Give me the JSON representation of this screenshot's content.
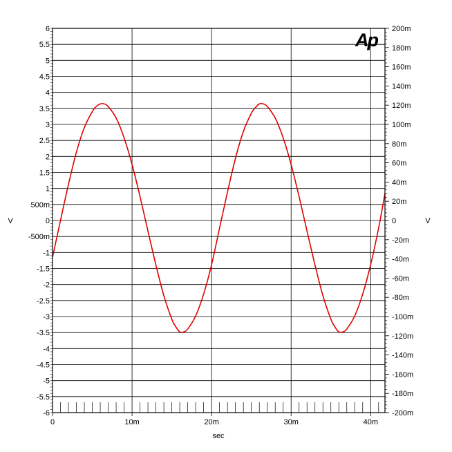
{
  "chart_data": {
    "type": "line",
    "title": "",
    "xlabel": "sec",
    "ylabel_left": "V",
    "ylabel_right": "V",
    "xlim": [
      0,
      0.0418
    ],
    "ylim_left": [
      -6,
      6
    ],
    "ylim_right": [
      -0.2,
      0.2
    ],
    "grid": true,
    "x_ticks": [
      {
        "value": 0,
        "label": "0"
      },
      {
        "value": 0.01,
        "label": "10m"
      },
      {
        "value": 0.02,
        "label": "20m"
      },
      {
        "value": 0.03,
        "label": "30m"
      },
      {
        "value": 0.04,
        "label": "40m"
      }
    ],
    "y_ticks_left": [
      {
        "value": 6,
        "label": "6"
      },
      {
        "value": 5.5,
        "label": "5.5"
      },
      {
        "value": 5,
        "label": "5"
      },
      {
        "value": 4.5,
        "label": "4.5"
      },
      {
        "value": 4,
        "label": "4"
      },
      {
        "value": 3.5,
        "label": "3.5"
      },
      {
        "value": 3,
        "label": "3"
      },
      {
        "value": 2.5,
        "label": "2.5"
      },
      {
        "value": 2,
        "label": "2"
      },
      {
        "value": 1.5,
        "label": "1.5"
      },
      {
        "value": 1,
        "label": "1"
      },
      {
        "value": 0.5,
        "label": "500m"
      },
      {
        "value": 0,
        "label": "0"
      },
      {
        "value": -0.5,
        "label": "-500m"
      },
      {
        "value": -1,
        "label": "-1"
      },
      {
        "value": -1.5,
        "label": "-1.5"
      },
      {
        "value": -2,
        "label": "-2"
      },
      {
        "value": -2.5,
        "label": "-2.5"
      },
      {
        "value": -3,
        "label": "-3"
      },
      {
        "value": -3.5,
        "label": "-3.5"
      },
      {
        "value": -4,
        "label": "-4"
      },
      {
        "value": -4.5,
        "label": "-4.5"
      },
      {
        "value": -5,
        "label": "-5"
      },
      {
        "value": -5.5,
        "label": "-5.5"
      },
      {
        "value": -6,
        "label": "-6"
      }
    ],
    "y_ticks_right": [
      {
        "value": 0.2,
        "label": "200m"
      },
      {
        "value": 0.18,
        "label": "180m"
      },
      {
        "value": 0.16,
        "label": "160m"
      },
      {
        "value": 0.14,
        "label": "140m"
      },
      {
        "value": 0.12,
        "label": "120m"
      },
      {
        "value": 0.1,
        "label": "100m"
      },
      {
        "value": 0.08,
        "label": "80m"
      },
      {
        "value": 0.06,
        "label": "60m"
      },
      {
        "value": 0.04,
        "label": "40m"
      },
      {
        "value": 0.02,
        "label": "20m"
      },
      {
        "value": 0,
        "label": "0"
      },
      {
        "value": -0.02,
        "label": "-20m"
      },
      {
        "value": -0.04,
        "label": "-40m"
      },
      {
        "value": -0.06,
        "label": "-60m"
      },
      {
        "value": -0.08,
        "label": "-80m"
      },
      {
        "value": -0.1,
        "label": "-100m"
      },
      {
        "value": -0.12,
        "label": "-120m"
      },
      {
        "value": -0.14,
        "label": "-140m"
      },
      {
        "value": -0.16,
        "label": "-160m"
      },
      {
        "value": -0.18,
        "label": "-180m"
      },
      {
        "value": -0.2,
        "label": "-200m"
      }
    ],
    "series": [
      {
        "axis": "left",
        "color": "#e00000",
        "x": [
          0,
          0.001,
          0.002,
          0.003,
          0.004,
          0.005,
          0.0055,
          0.006,
          0.0065,
          0.007,
          0.008,
          0.009,
          0.01,
          0.011,
          0.012,
          0.013,
          0.014,
          0.015,
          0.0155,
          0.016,
          0.0165,
          0.017,
          0.018,
          0.019,
          0.02,
          0.021,
          0.022,
          0.023,
          0.024,
          0.025,
          0.0255,
          0.026,
          0.0265,
          0.027,
          0.028,
          0.029,
          0.03,
          0.031,
          0.032,
          0.033,
          0.034,
          0.035,
          0.0355,
          0.036,
          0.0365,
          0.037,
          0.038,
          0.039,
          0.04,
          0.041,
          0.0418
        ],
        "y": [
          -1.15,
          0.0,
          1.12,
          2.13,
          2.9,
          3.4,
          3.56,
          3.64,
          3.64,
          3.56,
          3.2,
          2.58,
          1.75,
          0.75,
          -0.33,
          -1.39,
          -2.35,
          -3.08,
          -3.32,
          -3.48,
          -3.48,
          -3.39,
          -2.98,
          -2.3,
          -1.38,
          -0.24,
          0.89,
          1.94,
          2.78,
          3.35,
          3.52,
          3.64,
          3.64,
          3.56,
          3.2,
          2.58,
          1.75,
          0.75,
          -0.33,
          -1.39,
          -2.35,
          -3.08,
          -3.32,
          -3.48,
          -3.48,
          -3.39,
          -2.98,
          -2.3,
          -1.38,
          -0.24,
          0.85
        ]
      }
    ]
  },
  "logo": {
    "text": "Ap",
    "color": "#1a1aff"
  }
}
